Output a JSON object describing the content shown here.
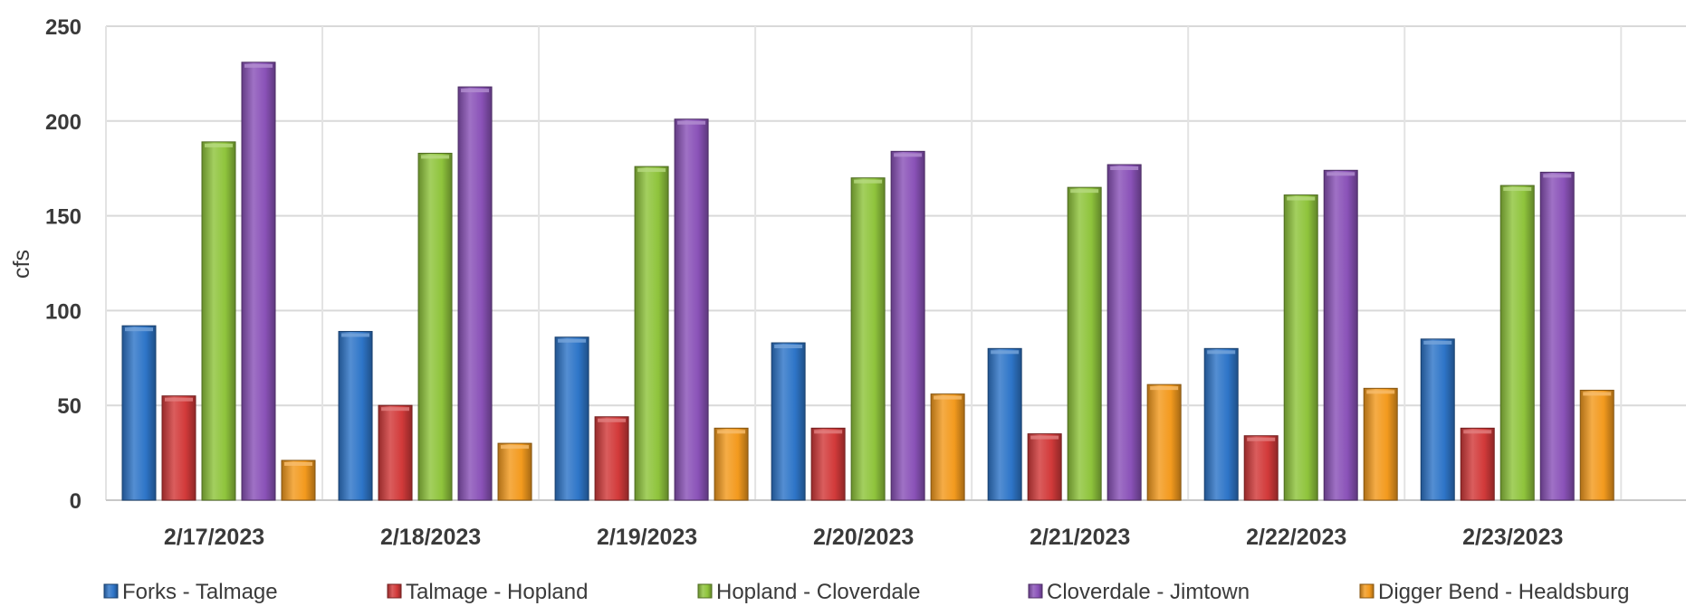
{
  "chart_data": {
    "type": "bar",
    "title": "",
    "xlabel": "",
    "ylabel": "cfs",
    "ylim": [
      0,
      250
    ],
    "yticks": [
      0,
      50,
      100,
      150,
      200,
      250
    ],
    "grid": true,
    "legend_position": "bottom",
    "categories": [
      "2/17/2023",
      "2/18/2023",
      "2/19/2023",
      "2/20/2023",
      "2/21/2023",
      "2/22/2023",
      "2/23/2023"
    ],
    "series": [
      {
        "name": "Forks - Talmage",
        "color": "#2e75c8",
        "values": [
          92,
          89,
          86,
          83,
          80,
          80,
          85
        ]
      },
      {
        "name": "Talmage - Hopland",
        "color": "#d23a3a",
        "values": [
          55,
          50,
          44,
          38,
          35,
          34,
          38
        ]
      },
      {
        "name": "Hopland - Cloverdale",
        "color": "#8fc43c",
        "values": [
          189,
          183,
          176,
          170,
          165,
          161,
          166
        ]
      },
      {
        "name": "Cloverdale - Jimtown",
        "color": "#8a52b8",
        "values": [
          231,
          218,
          201,
          184,
          177,
          174,
          173
        ]
      },
      {
        "name": "Digger Bend - Healdsburg",
        "color": "#f39a1e",
        "values": [
          21,
          30,
          38,
          56,
          61,
          59,
          58
        ]
      }
    ]
  }
}
